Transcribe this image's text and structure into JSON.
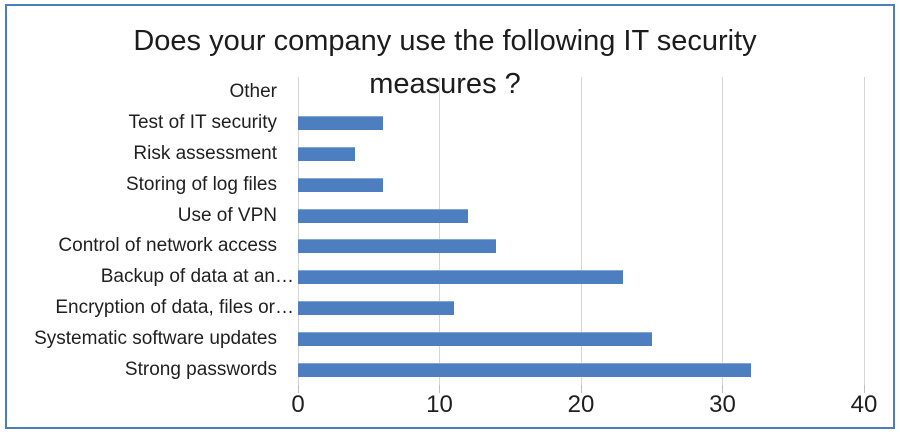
{
  "figure": {
    "background": "#ffffff",
    "frame_border_color": "#4a7ec0"
  },
  "chart_data": {
    "type": "bar",
    "orientation": "horizontal",
    "title": "Does your company use the following IT security measures ?",
    "title_lines": [
      "Does your company use the following IT security",
      "measures ?"
    ],
    "categories": [
      "Other",
      "Test of IT security",
      "Risk assessment",
      "Storing of log files",
      "Use of VPN",
      "Control of network access",
      "Backup of data at an…",
      "Encryption of data, files or…",
      "Systematic software updates",
      "Strong passwords"
    ],
    "values": [
      0,
      6,
      4,
      6,
      12,
      14,
      23,
      11,
      25,
      32
    ],
    "xlabel": "",
    "ylabel": "",
    "xlim": [
      0,
      40
    ],
    "x_ticks": [
      "0",
      "10",
      "20",
      "30",
      "40"
    ],
    "x_tick_values": [
      0,
      10,
      20,
      30,
      40
    ],
    "bar_color": "#4c7ec0",
    "gridline_color": "#d6d6d6",
    "grid": "vertical",
    "legend": "none"
  }
}
